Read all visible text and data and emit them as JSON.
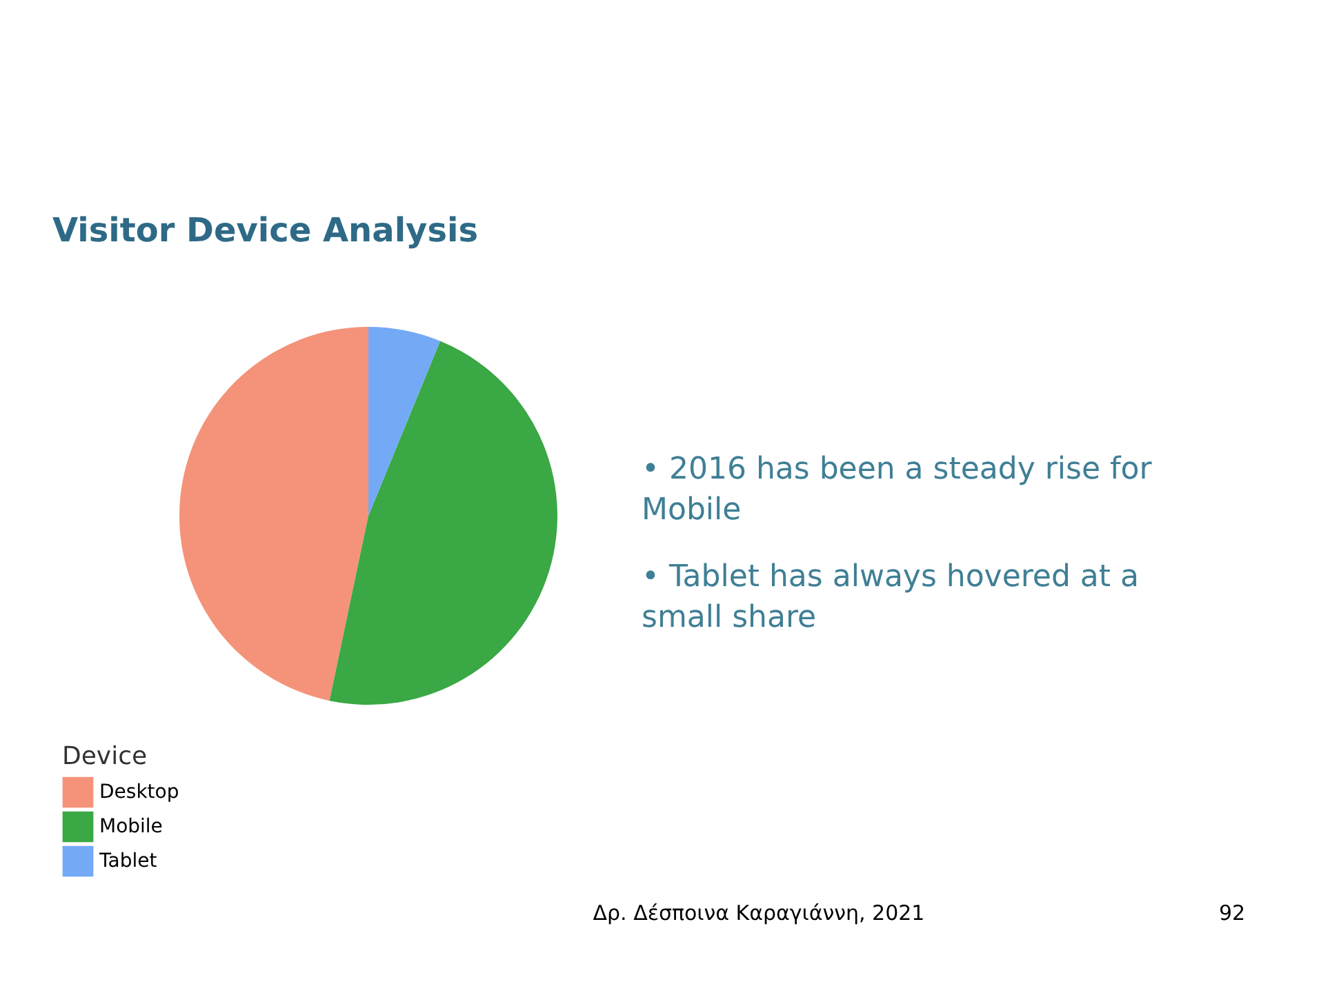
{
  "chart_data": {
    "type": "pie",
    "title": "Visitor Device Analysis",
    "legend_title": "Device",
    "legend": "bottom left",
    "categories": [
      "Desktop",
      "Mobile",
      "Tablet"
    ],
    "values": [
      46.7,
      47.1,
      6.2
    ],
    "colors": [
      "#f4937a",
      "#3aa844",
      "#74a9f6"
    ],
    "annotations": [
      "• 2016 has been a steady rise for Mobile",
      "• Tablet has always hovered at a small share",
      "Δρ. Δέσποινα Καραγιάννη, 2021",
      "92"
    ]
  }
}
